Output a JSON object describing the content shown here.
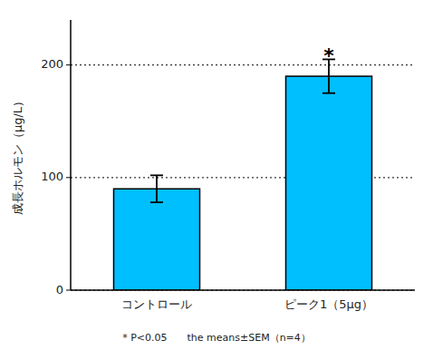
{
  "chart_data": {
    "type": "bar",
    "categories": [
      "コントロール",
      "ピーク1（5μg）"
    ],
    "values": [
      90,
      190
    ],
    "errors": [
      12,
      15
    ],
    "color": "#00BFFF",
    "ylabel": "成長ホルモン（μg/L）",
    "ylim": [
      0,
      240
    ],
    "yticks": [
      0,
      100,
      200
    ],
    "grid": true,
    "annotations": [
      {
        "text": "*",
        "x": "ピーク1（5μg）",
        "y": 212
      }
    ],
    "footnote": "* P<0.05　　the means±SEM（n=4）"
  }
}
